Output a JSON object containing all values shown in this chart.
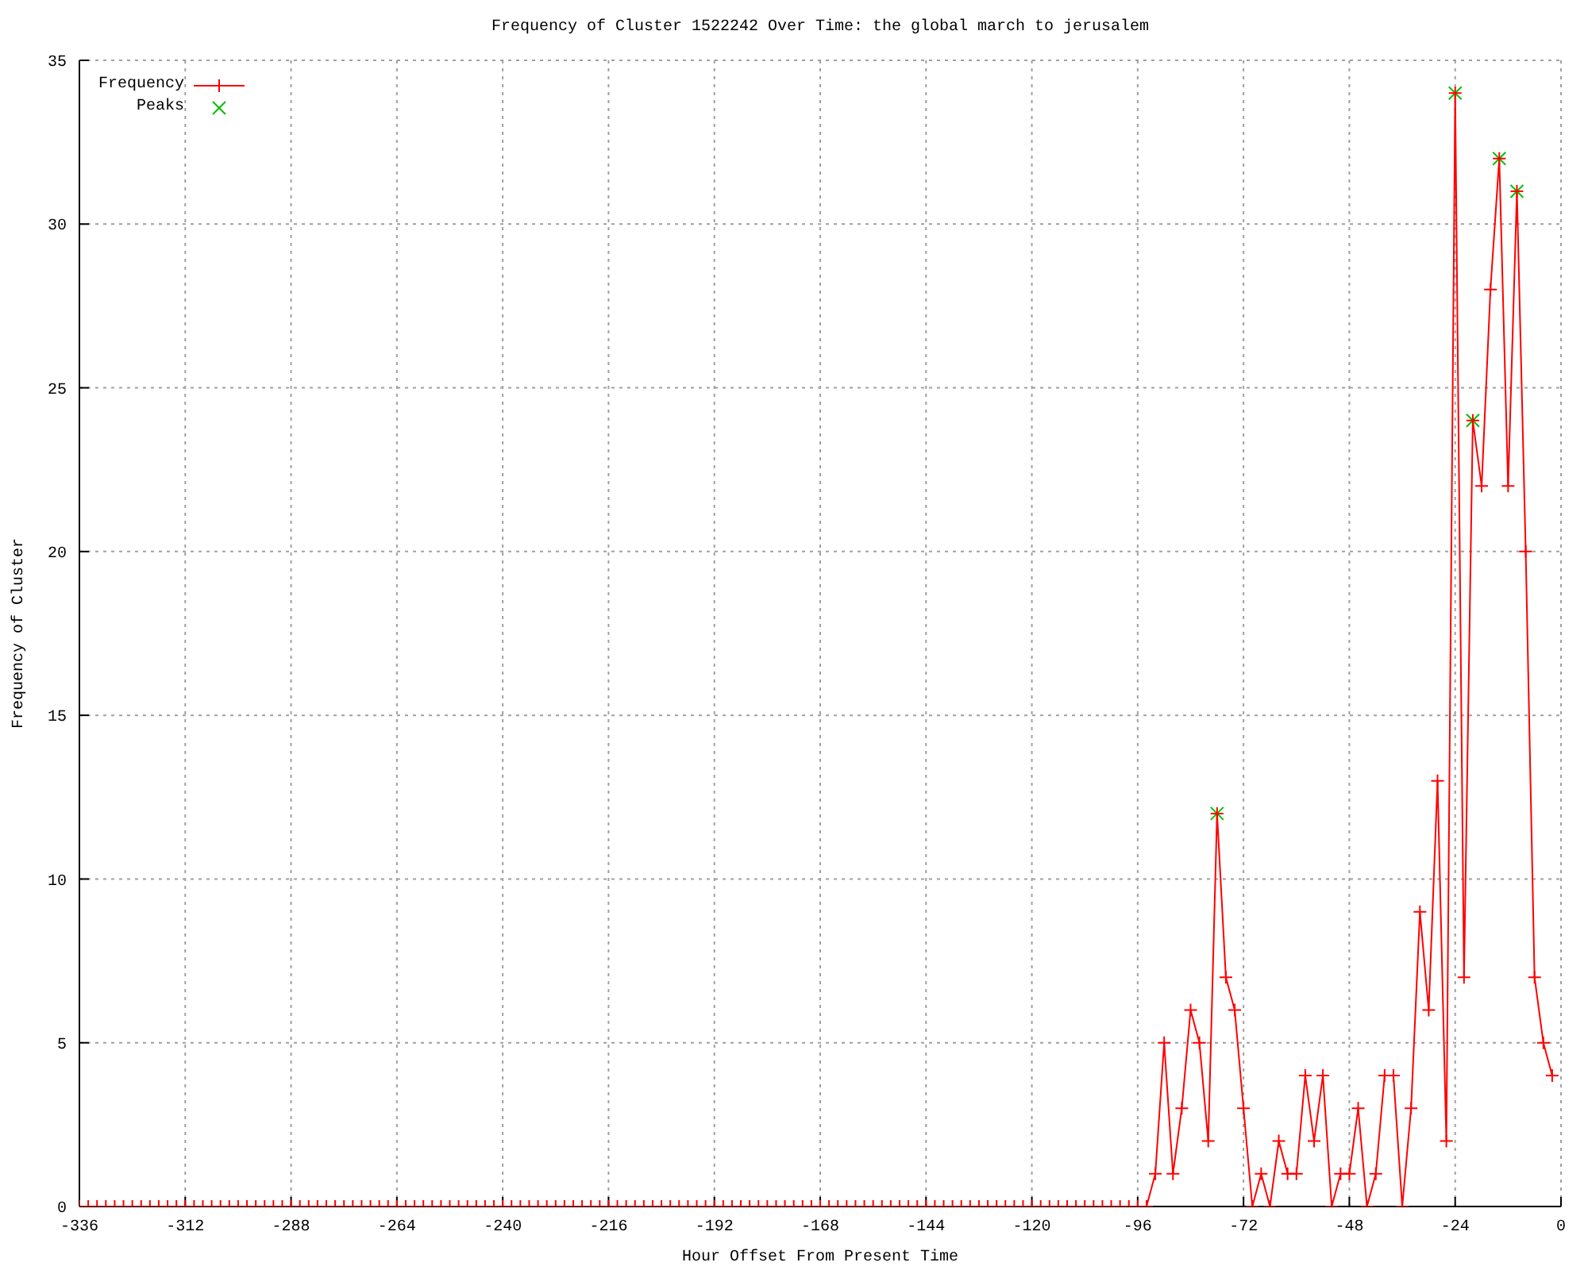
{
  "chart_data": {
    "type": "line",
    "title": "Frequency of Cluster 1522242 Over Time: the global march to jerusalem",
    "xlabel": "Hour Offset From Present Time",
    "ylabel": "Frequency of Cluster",
    "x": [
      -336,
      -334,
      -332,
      -330,
      -328,
      -326,
      -324,
      -322,
      -320,
      -318,
      -316,
      -314,
      -312,
      -310,
      -308,
      -306,
      -304,
      -302,
      -300,
      -298,
      -296,
      -294,
      -292,
      -290,
      -288,
      -286,
      -284,
      -282,
      -280,
      -278,
      -276,
      -274,
      -272,
      -270,
      -268,
      -266,
      -264,
      -262,
      -260,
      -258,
      -256,
      -254,
      -252,
      -250,
      -248,
      -246,
      -244,
      -242,
      -240,
      -238,
      -236,
      -234,
      -232,
      -230,
      -228,
      -226,
      -224,
      -222,
      -220,
      -218,
      -216,
      -214,
      -212,
      -210,
      -208,
      -206,
      -204,
      -202,
      -200,
      -198,
      -196,
      -194,
      -192,
      -190,
      -188,
      -186,
      -184,
      -182,
      -180,
      -178,
      -176,
      -174,
      -172,
      -170,
      -168,
      -166,
      -164,
      -162,
      -160,
      -158,
      -156,
      -154,
      -152,
      -150,
      -148,
      -146,
      -144,
      -142,
      -140,
      -138,
      -136,
      -134,
      -132,
      -130,
      -128,
      -126,
      -124,
      -122,
      -120,
      -118,
      -116,
      -114,
      -112,
      -110,
      -108,
      -106,
      -104,
      -102,
      -100,
      -98,
      -96,
      -94,
      -92,
      -90,
      -88,
      -86,
      -84,
      -82,
      -80,
      -78,
      -76,
      -74,
      -72,
      -70,
      -68,
      -66,
      -64,
      -62,
      -60,
      -58,
      -56,
      -54,
      -52,
      -50,
      -48,
      -46,
      -44,
      -42,
      -40,
      -38,
      -36,
      -34,
      -32,
      -30,
      -28,
      -26,
      -24,
      -22,
      -20,
      -18,
      -16,
      -14,
      -12,
      -10,
      -8,
      -6,
      -4,
      -2
    ],
    "series": [
      {
        "name": "Frequency",
        "color": "#ff0000",
        "marker": "cross",
        "values": [
          0,
          0,
          0,
          0,
          0,
          0,
          0,
          0,
          0,
          0,
          0,
          0,
          0,
          0,
          0,
          0,
          0,
          0,
          0,
          0,
          0,
          0,
          0,
          0,
          0,
          0,
          0,
          0,
          0,
          0,
          0,
          0,
          0,
          0,
          0,
          0,
          0,
          0,
          0,
          0,
          0,
          0,
          0,
          0,
          0,
          0,
          0,
          0,
          0,
          0,
          0,
          0,
          0,
          0,
          0,
          0,
          0,
          0,
          0,
          0,
          0,
          0,
          0,
          0,
          0,
          0,
          0,
          0,
          0,
          0,
          0,
          0,
          0,
          0,
          0,
          0,
          0,
          0,
          0,
          0,
          0,
          0,
          0,
          0,
          0,
          0,
          0,
          0,
          0,
          0,
          0,
          0,
          0,
          0,
          0,
          0,
          0,
          0,
          0,
          0,
          0,
          0,
          0,
          0,
          0,
          0,
          0,
          0,
          0,
          0,
          0,
          0,
          0,
          0,
          0,
          0,
          0,
          0,
          0,
          0,
          0,
          0,
          1,
          5,
          1,
          3,
          6,
          5,
          2,
          12,
          7,
          6,
          3,
          0,
          1,
          0,
          2,
          1,
          1,
          4,
          2,
          4,
          0,
          1,
          1,
          3,
          0,
          1,
          4,
          4,
          0,
          3,
          9,
          6,
          13,
          2,
          34,
          7,
          24,
          22,
          28,
          32,
          22,
          31,
          20,
          7,
          5,
          4
        ]
      },
      {
        "name": "Peaks",
        "type": "scatter",
        "color": "#00c000",
        "x": [
          -78,
          -24,
          -20,
          -14,
          -10
        ],
        "values": [
          12,
          34,
          24,
          32,
          31
        ]
      }
    ],
    "xlim": [
      -336,
      0
    ],
    "xticks": [
      -336,
      -312,
      -288,
      -264,
      -240,
      -216,
      -192,
      -168,
      -144,
      -120,
      -96,
      -72,
      -48,
      -24,
      0
    ],
    "ylim": [
      0,
      35
    ],
    "yticks": [
      0,
      5,
      10,
      15,
      20,
      25,
      30,
      35
    ],
    "grid": true,
    "legend": "top left"
  }
}
